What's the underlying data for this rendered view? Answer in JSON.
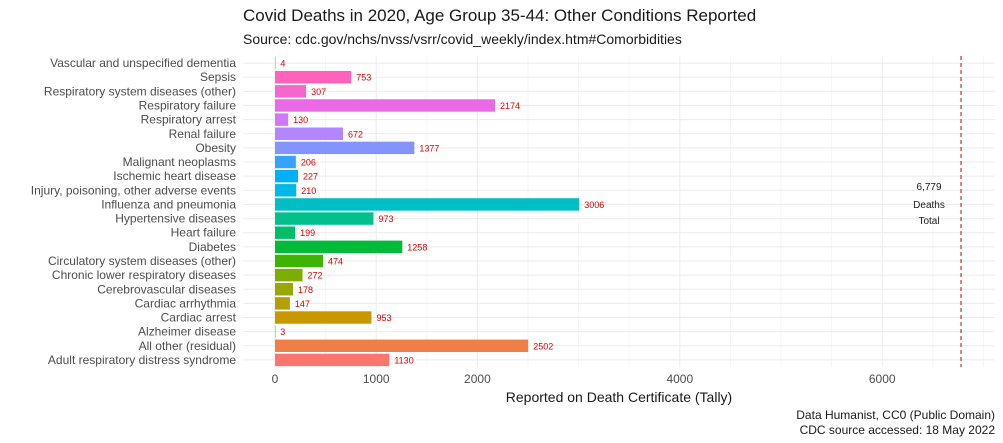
{
  "chart_data": {
    "type": "bar",
    "orientation": "horizontal",
    "title": "Covid Deaths in 2020, Age Group 35-44: Other Conditions Reported",
    "subtitle": "Source: cdc.gov/nchs/nvss/vsrr/covid_weekly/index.htm#Comorbidities",
    "xlabel": "Reported on Death Certificate (Tally)",
    "ylabel": "",
    "xlim": [
      -150,
      7000
    ],
    "xticks": [
      0,
      1000,
      2000,
      4000,
      6000
    ],
    "grid": true,
    "bars": [
      {
        "label": "Adult respiratory distress syndrome",
        "value": 1130,
        "color": "#F8766D"
      },
      {
        "label": "All other (residual)",
        "value": 2502,
        "color": "#EF7F47"
      },
      {
        "label": "Alzheimer disease",
        "value": 3,
        "color": "#E38900"
      },
      {
        "label": "Cardiac arrest",
        "value": 953,
        "color": "#C99800"
      },
      {
        "label": "Cardiac arrhythmia",
        "value": 147,
        "color": "#B2A000"
      },
      {
        "label": "Cerebrovascular diseases",
        "value": 178,
        "color": "#99A800"
      },
      {
        "label": "Chronic lower respiratory diseases",
        "value": 272,
        "color": "#7CAE00"
      },
      {
        "label": "Circulatory system diseases (other)",
        "value": 474,
        "color": "#3DB400"
      },
      {
        "label": "Diabetes",
        "value": 1258,
        "color": "#00BA38"
      },
      {
        "label": "Heart failure",
        "value": 199,
        "color": "#00BE67"
      },
      {
        "label": "Hypertensive diseases",
        "value": 973,
        "color": "#00C08B"
      },
      {
        "label": "Influenza and pneumonia",
        "value": 3006,
        "color": "#00BFC4"
      },
      {
        "label": "Injury, poisoning, other adverse events",
        "value": 210,
        "color": "#00B8E7"
      },
      {
        "label": "Ischemic heart disease",
        "value": 227,
        "color": "#00B0F6"
      },
      {
        "label": "Malignant neoplasms",
        "value": 206,
        "color": "#35A2FF"
      },
      {
        "label": "Obesity",
        "value": 1377,
        "color": "#8494FF"
      },
      {
        "label": "Renal failure",
        "value": 672,
        "color": "#B385FF"
      },
      {
        "label": "Respiratory arrest",
        "value": 130,
        "color": "#D078F7"
      },
      {
        "label": "Respiratory failure",
        "value": 2174,
        "color": "#EA6AE5"
      },
      {
        "label": "Respiratory system diseases (other)",
        "value": 307,
        "color": "#F766CD"
      },
      {
        "label": "Sepsis",
        "value": 753,
        "color": "#FF62BC"
      },
      {
        "label": "Vascular and unspecified dementia",
        "value": 4,
        "color": "#FF65A5"
      }
    ],
    "reference_line": {
      "value": 6779,
      "color": "#cc0000",
      "style": "dashed"
    },
    "annotation": {
      "lines": [
        "6,779",
        "Deaths",
        "Total"
      ]
    }
  },
  "caption": {
    "line1": "Data Humanist, CC0 (Public Domain)",
    "line2": "CDC source accessed: 18 May 2022"
  }
}
